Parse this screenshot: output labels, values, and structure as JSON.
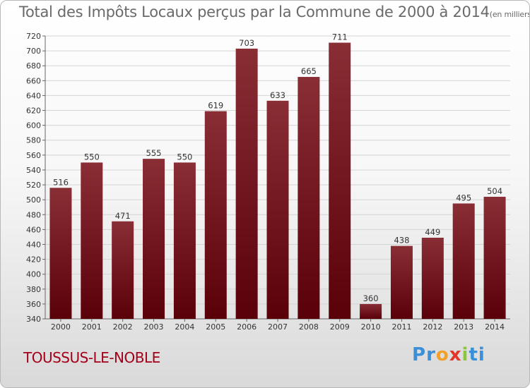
{
  "header": {
    "title": "Total des Impôts Locaux perçus par la Commune de 2000 à 2014",
    "unit": "(en milliers d'€)"
  },
  "footer": {
    "commune": "TOUSSUS-LE-NOBLE",
    "logo_letters": [
      "P",
      "r",
      "o",
      "x",
      "i",
      "t",
      "i"
    ],
    "logo_colors": [
      "#3b8fd9",
      "#3b8fd9",
      "#f2a02a",
      "#e5342a",
      "#8cc63f",
      "#3b8fd9",
      "#3b8fd9"
    ]
  },
  "chart_data": {
    "type": "bar",
    "title": "Total des Impôts Locaux perçus par la Commune de 2000 à 2014",
    "unit": "(en milliers d'€)",
    "categories": [
      "2000",
      "2001",
      "2002",
      "2003",
      "2004",
      "2005",
      "2006",
      "2007",
      "2008",
      "2009",
      "2010",
      "2011",
      "2012",
      "2013",
      "2014"
    ],
    "values": [
      516,
      550,
      471,
      555,
      550,
      619,
      703,
      633,
      665,
      711,
      360,
      438,
      449,
      495,
      504
    ],
    "ylim": [
      340,
      720
    ],
    "yticks": [
      340,
      360,
      380,
      400,
      420,
      440,
      460,
      480,
      500,
      520,
      540,
      560,
      580,
      600,
      620,
      640,
      660,
      680,
      700,
      720
    ],
    "grid": true,
    "bar_color_top": "#8a2e36",
    "bar_color_bottom": "#5a0008"
  }
}
